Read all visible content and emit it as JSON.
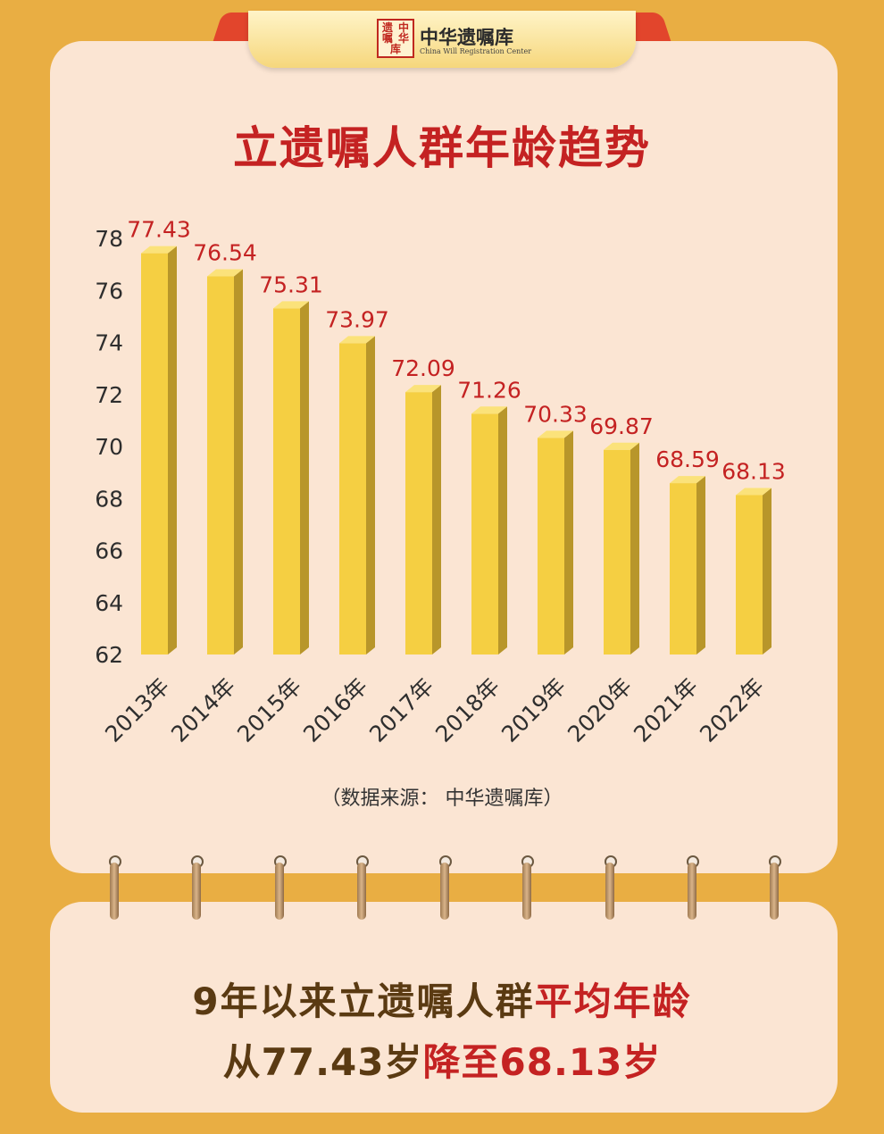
{
  "brand": {
    "seal_chars": [
      "遗",
      "中",
      "嘱",
      "华",
      "库"
    ],
    "name_cn": "中华遗嘱库",
    "name_en": "China Will Registration Center"
  },
  "chart_data": {
    "type": "bar",
    "title": "立遗嘱人群年龄趋势",
    "categories": [
      "2013年",
      "2014年",
      "2015年",
      "2016年",
      "2017年",
      "2018年",
      "2019年",
      "2020年",
      "2021年",
      "2022年"
    ],
    "values": [
      77.43,
      76.54,
      75.31,
      73.97,
      72.09,
      71.26,
      70.33,
      69.87,
      68.59,
      68.13
    ],
    "value_labels": [
      "77.43",
      "76.54",
      "75.31",
      "73.97",
      "72.09",
      "71.26",
      "70.33",
      "69.87",
      "68.59",
      "68.13"
    ],
    "ylim": [
      62,
      78
    ],
    "yticks": [
      62,
      64,
      66,
      68,
      70,
      72,
      74,
      76,
      78
    ],
    "grid": false,
    "bar_color": "#F5CF42",
    "bar_side_color": "#B8962A",
    "bar_top_color": "#FBE27A",
    "label_color": "#C42222",
    "source": "（数据来源：  中华遗嘱库）"
  },
  "summary": {
    "line1_plain": "9年以来立遗嘱人群",
    "line1_red": "平均年龄",
    "line2_plain": "从77.43岁",
    "line2_red": "降至68.13岁"
  },
  "colors": {
    "background": "#E9AE43",
    "card": "#FBE5D3",
    "accent_red": "#C42222",
    "summary_text": "#5A3A12"
  }
}
